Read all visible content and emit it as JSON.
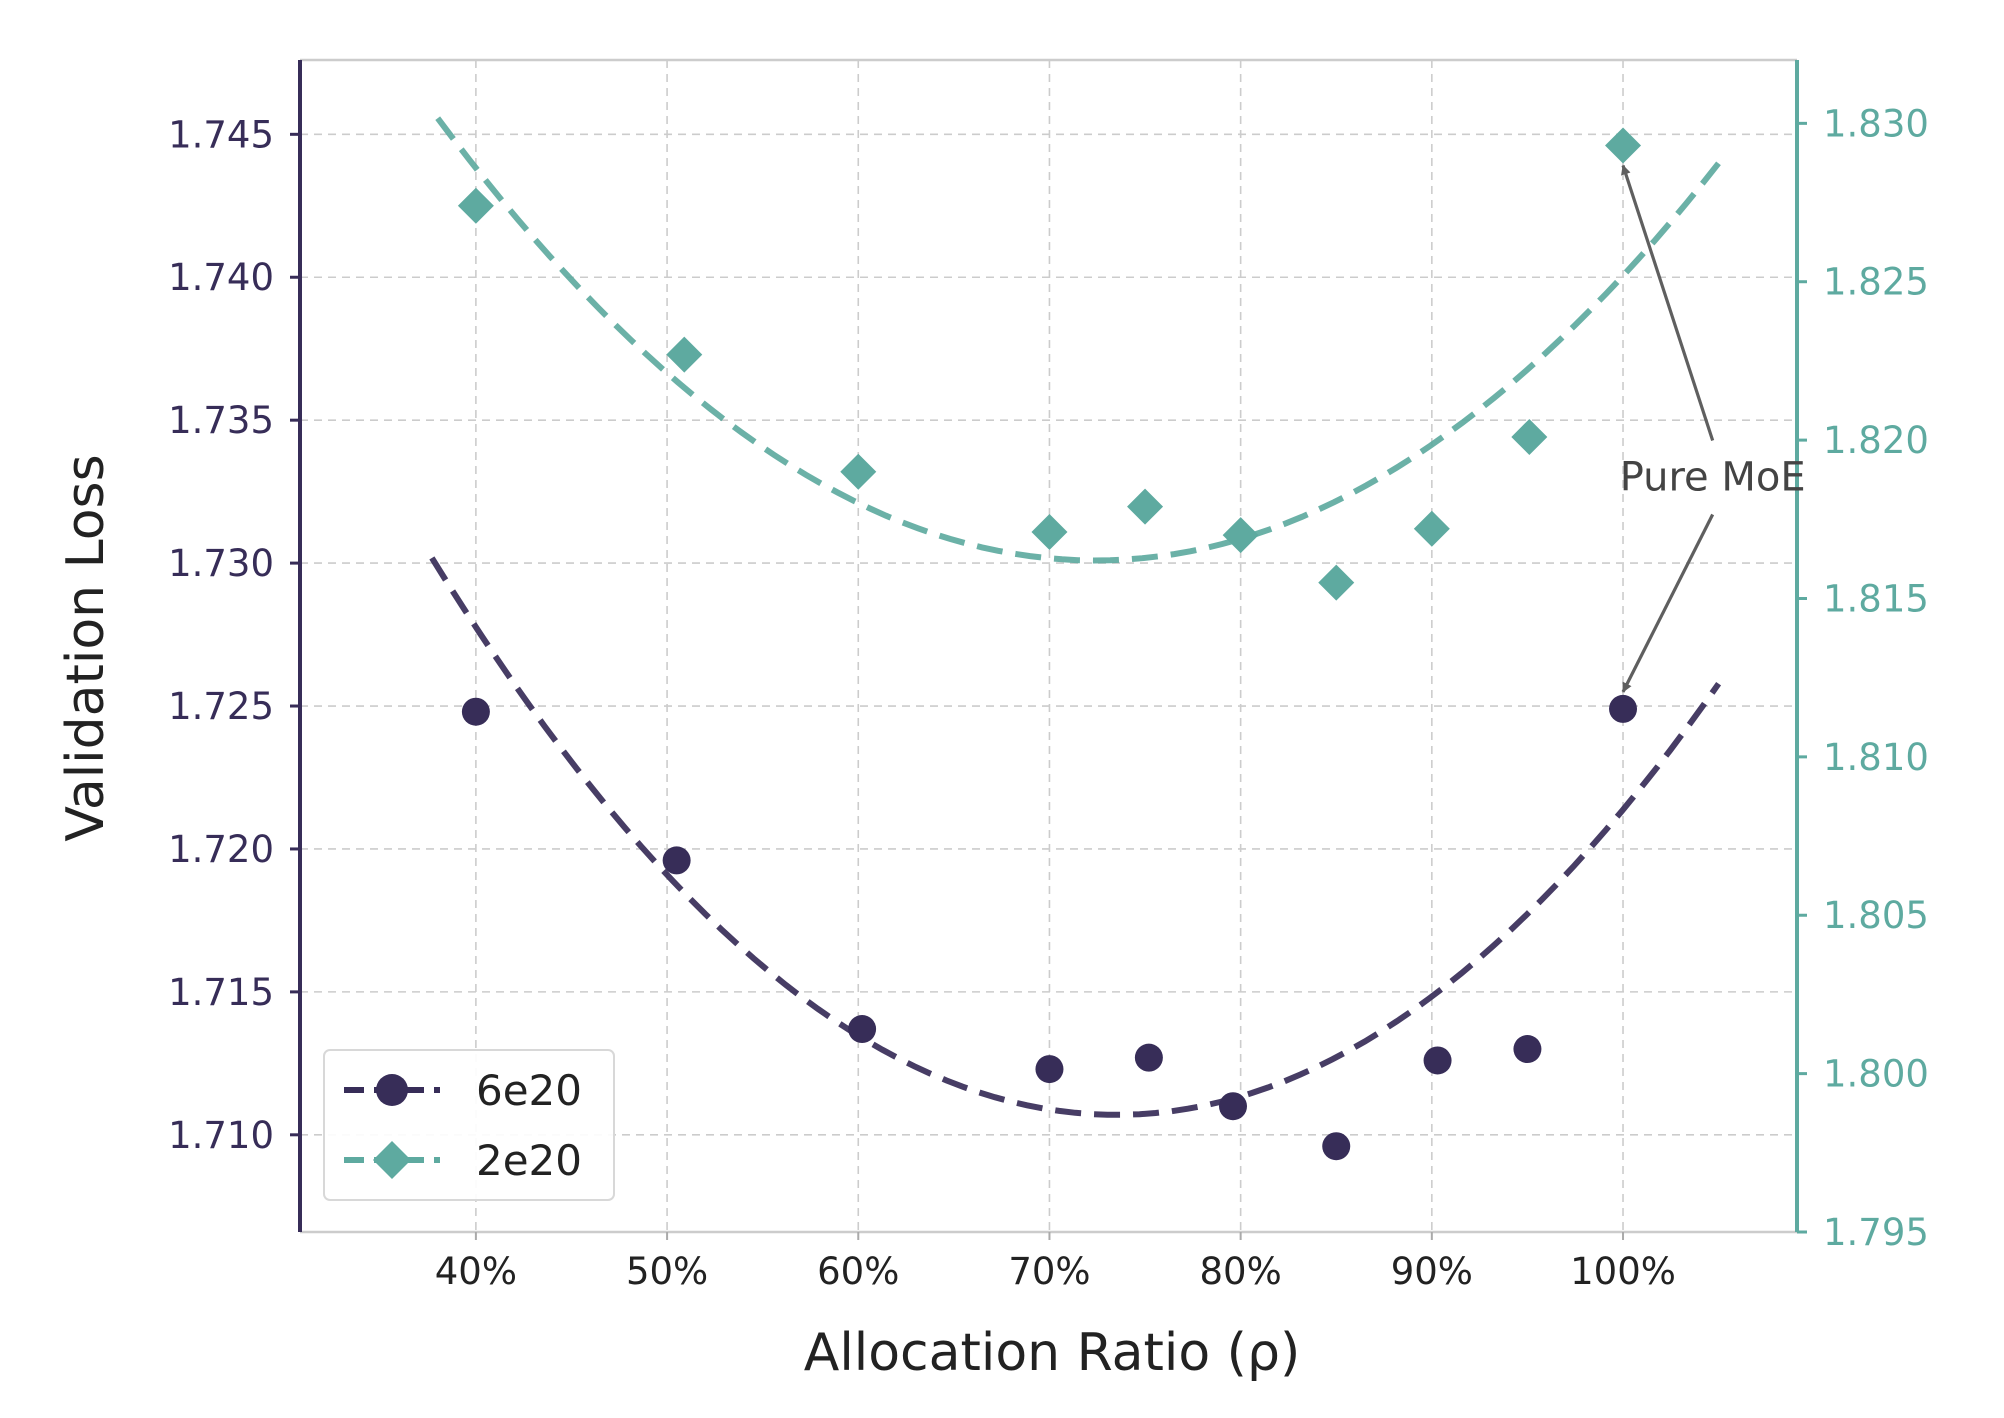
{
  "chart_data": {
    "type": "scatter",
    "xlabel": "Allocation Ratio (ρ)",
    "ylabel": "Validation Loss",
    "x_ticks": [
      {
        "value": 40,
        "label": "40%"
      },
      {
        "value": 50,
        "label": "50%"
      },
      {
        "value": 60,
        "label": "60%"
      },
      {
        "value": 70,
        "label": "70%"
      },
      {
        "value": 80,
        "label": "80%"
      },
      {
        "value": 90,
        "label": "90%"
      },
      {
        "value": 100,
        "label": "100%"
      }
    ],
    "xlim": [
      30.8,
      109.1
    ],
    "y_left": {
      "lim": [
        1.7066,
        1.7476
      ],
      "ticks": [
        {
          "value": 1.71,
          "label": "1.710"
        },
        {
          "value": 1.715,
          "label": "1.715"
        },
        {
          "value": 1.72,
          "label": "1.720"
        },
        {
          "value": 1.725,
          "label": "1.725"
        },
        {
          "value": 1.73,
          "label": "1.730"
        },
        {
          "value": 1.735,
          "label": "1.735"
        },
        {
          "value": 1.74,
          "label": "1.740"
        },
        {
          "value": 1.745,
          "label": "1.745"
        }
      ]
    },
    "y_right": {
      "lim": [
        1.795,
        1.832
      ],
      "ticks": [
        {
          "value": 1.795,
          "label": "1.795"
        },
        {
          "value": 1.8,
          "label": "1.800"
        },
        {
          "value": 1.805,
          "label": "1.805"
        },
        {
          "value": 1.81,
          "label": "1.810"
        },
        {
          "value": 1.815,
          "label": "1.815"
        },
        {
          "value": 1.82,
          "label": "1.820"
        },
        {
          "value": 1.825,
          "label": "1.825"
        },
        {
          "value": 1.83,
          "label": "1.830"
        }
      ]
    },
    "grid": true,
    "legend_position": "lower-left",
    "series": [
      {
        "name": "6e20",
        "axis": "left",
        "marker": "circle",
        "color": "#372d58",
        "x": [
          40,
          50.5,
          60.2,
          70,
          75.2,
          79.6,
          85,
          90.3,
          95,
          100
        ],
        "y": [
          1.7248,
          1.7196,
          1.7137,
          1.7123,
          1.7127,
          1.711,
          1.7096,
          1.7126,
          1.713,
          1.7249
        ],
        "fit": {
          "x_start": 37.7,
          "x_end": 105,
          "vertex_x": 73.5,
          "vertex_y": 1.7107,
          "a": 1.52e-05
        }
      },
      {
        "name": "2e20",
        "axis": "right",
        "marker": "diamond",
        "color": "#5eaaa0",
        "x": [
          40,
          50.9,
          60,
          70,
          75,
          80,
          85,
          90,
          95.1,
          100
        ],
        "y": [
          1.8274,
          1.8227,
          1.819,
          1.8171,
          1.8179,
          1.817,
          1.8155,
          1.8172,
          1.8201,
          1.8293
        ],
        "fit": {
          "x_start": 38,
          "x_end": 105,
          "vertex_x": 72.4,
          "vertex_y": 1.8162,
          "a": 1.18e-05
        }
      }
    ],
    "annotations": [
      {
        "text": "Pure MoE",
        "x": 97,
        "y_left": 1.7331,
        "points_to": [
          "2e20 at 100%",
          "6e20 at 100%"
        ]
      }
    ]
  }
}
